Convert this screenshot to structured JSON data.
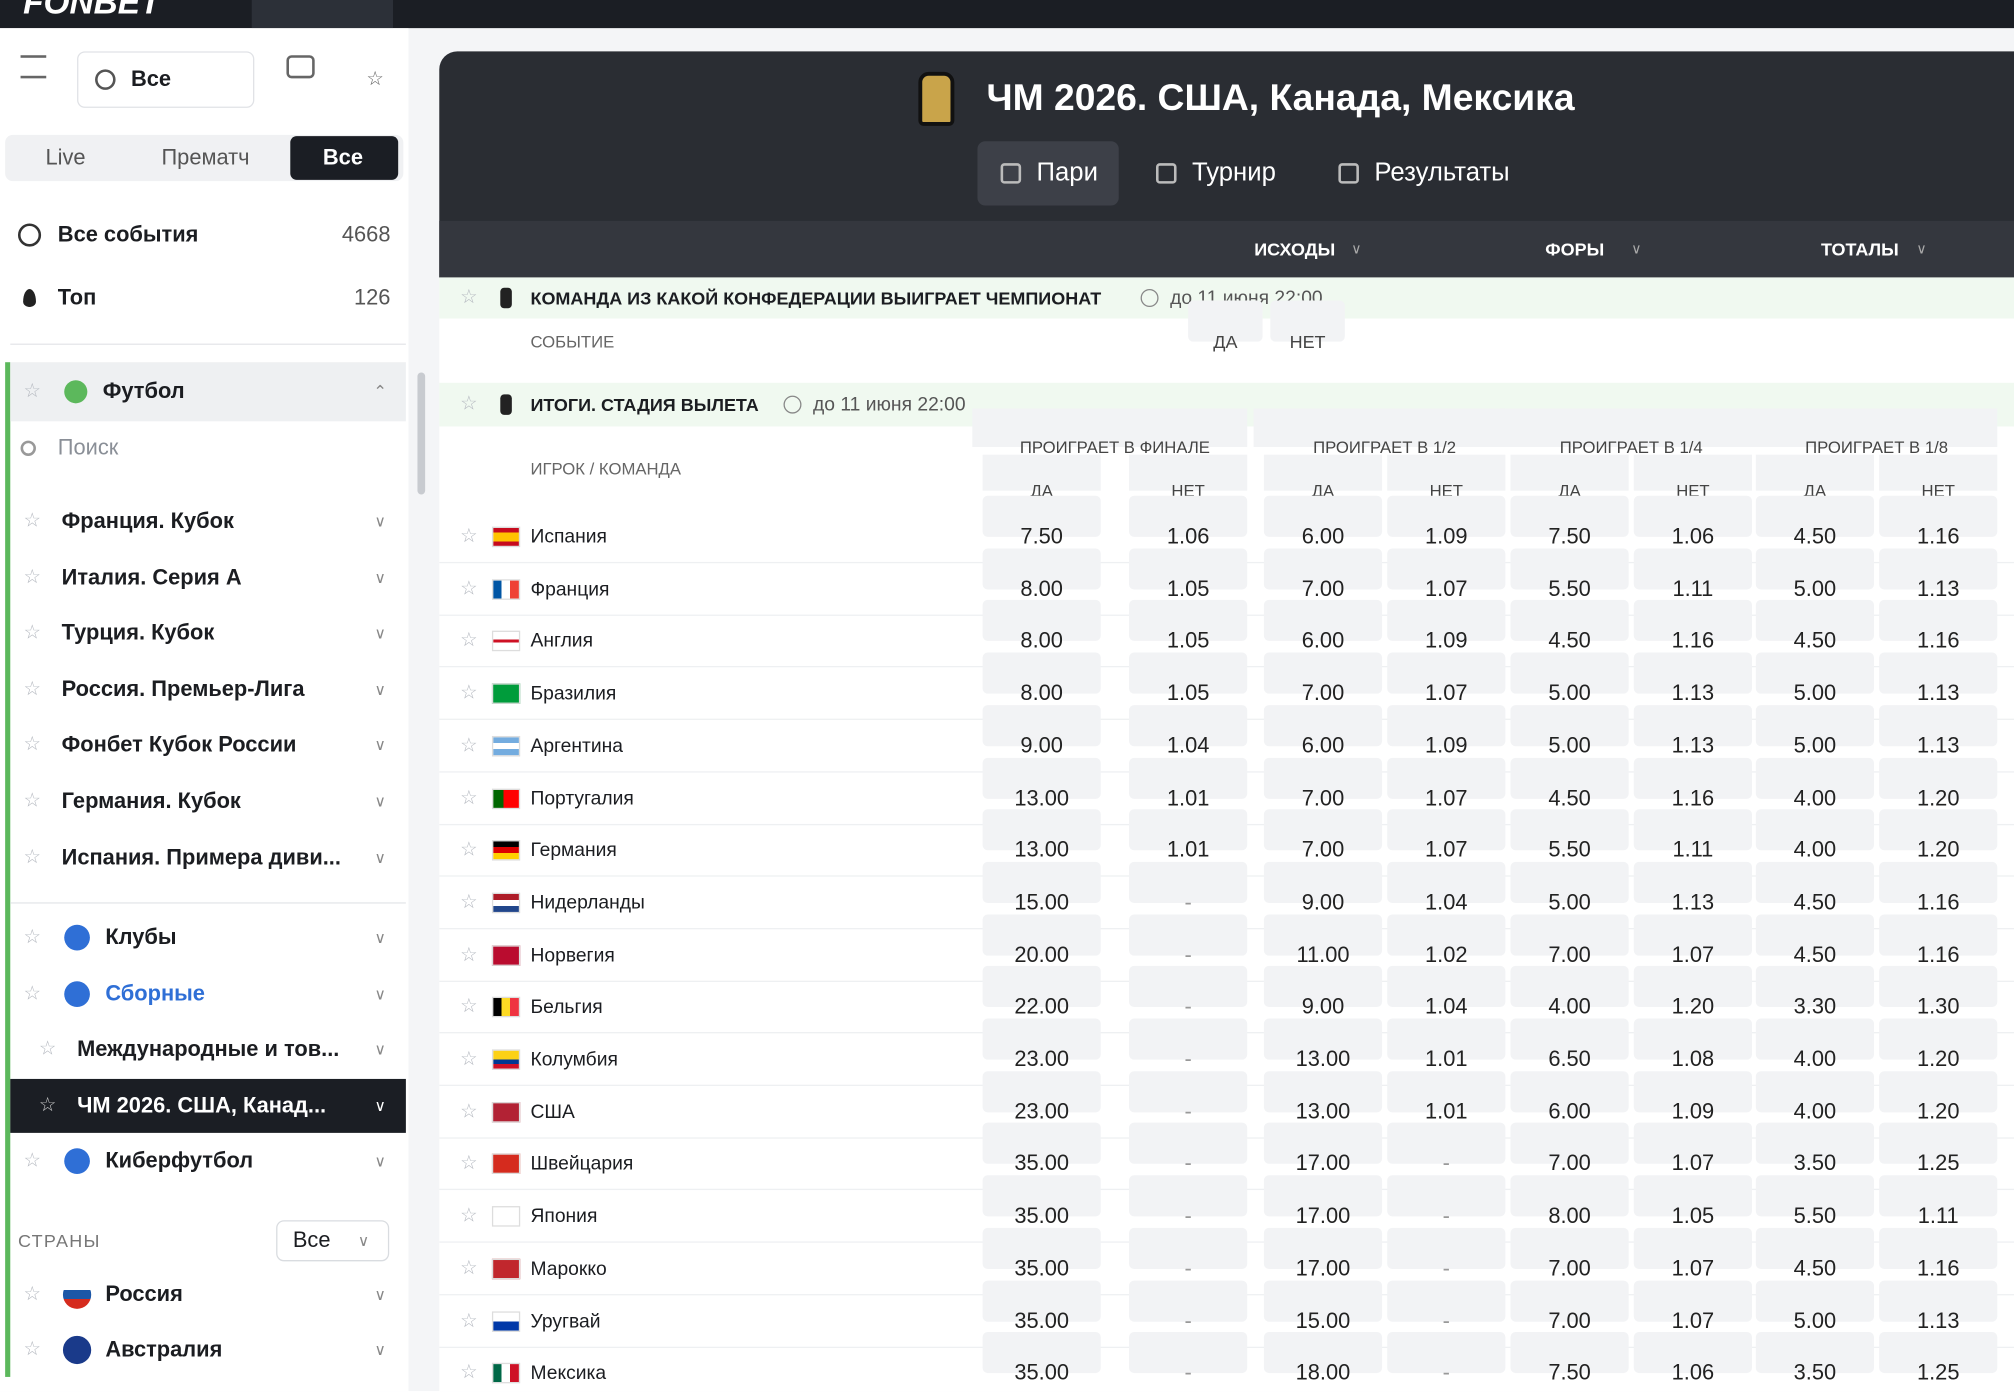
{
  "nav": {
    "logo": "FONBET"
  },
  "sidebar": {
    "filter": "Все",
    "modes": [
      "Live",
      "Прематч",
      "Все"
    ],
    "all_events": {
      "label": "Все события",
      "count": "4668"
    },
    "top": {
      "label": "Топ",
      "count": "126"
    },
    "sport": "Футбол",
    "search": "Поиск",
    "leagues": [
      "Франция. Кубок",
      "Италия. Серия А",
      "Турция. Кубок",
      "Россия. Премьер-Лига",
      "Фонбет Кубок России",
      "Германия. Кубок",
      "Испания. Примера диви..."
    ],
    "groups": [
      "Клубы",
      "Сборные"
    ],
    "subgroups": [
      "Международные и тов...",
      "ЧМ 2026. США, Канад..."
    ],
    "esport": "Киберфутбол",
    "countries": {
      "label": "СТРАНЫ",
      "filter": "Все",
      "items": [
        "Россия",
        "Австралия"
      ]
    }
  },
  "header": {
    "title": "ЧМ 2026. США, Канада, Мексика",
    "tabs": [
      "Пари",
      "Турнир",
      "Результаты"
    ],
    "columns": [
      "ИСХОДЫ",
      "ФОРЫ",
      "ТОТАЛЫ"
    ]
  },
  "market1": {
    "title": "КОМАНДА ИЗ КАКОЙ КОНФЕДЕРАЦИИ ВЫИГРАЕТ ЧЕМПИОНАТ",
    "deadline": "до 11 июня 22:00",
    "col_label": "СОБЫТИЕ",
    "options": [
      "ДА",
      "НЕТ"
    ]
  },
  "market2": {
    "title": "ИТОГИ. СТАДИЯ ВЫЛЕТА",
    "deadline": "до 11 июня 22:00",
    "col_label": "ИГРОК / КОМАНДА",
    "groups": [
      "ПРОИГРАЕТ В ФИНАЛЕ",
      "ПРОИГРАЕТ В 1/2",
      "ПРОИГРАЕТ В 1/4",
      "ПРОИГРАЕТ В 1/8"
    ],
    "subheads": [
      "ДА",
      "НЕТ"
    ],
    "rows": [
      {
        "name": "Испания",
        "odds": [
          "7.50",
          "1.06",
          "6.00",
          "1.09",
          "7.50",
          "1.06",
          "4.50",
          "1.16"
        ]
      },
      {
        "name": "Франция",
        "odds": [
          "8.00",
          "1.05",
          "7.00",
          "1.07",
          "5.50",
          "1.11",
          "5.00",
          "1.13"
        ]
      },
      {
        "name": "Англия",
        "odds": [
          "8.00",
          "1.05",
          "6.00",
          "1.09",
          "4.50",
          "1.16",
          "4.50",
          "1.16"
        ]
      },
      {
        "name": "Бразилия",
        "odds": [
          "8.00",
          "1.05",
          "7.00",
          "1.07",
          "5.00",
          "1.13",
          "5.00",
          "1.13"
        ]
      },
      {
        "name": "Аргентина",
        "odds": [
          "9.00",
          "1.04",
          "6.00",
          "1.09",
          "5.00",
          "1.13",
          "5.00",
          "1.13"
        ]
      },
      {
        "name": "Португалия",
        "odds": [
          "13.00",
          "1.01",
          "7.00",
          "1.07",
          "4.50",
          "1.16",
          "4.00",
          "1.20"
        ]
      },
      {
        "name": "Германия",
        "odds": [
          "13.00",
          "1.01",
          "7.00",
          "1.07",
          "5.50",
          "1.11",
          "4.00",
          "1.20"
        ]
      },
      {
        "name": "Нидерланды",
        "odds": [
          "15.00",
          "-",
          "9.00",
          "1.04",
          "5.00",
          "1.13",
          "4.50",
          "1.16"
        ]
      },
      {
        "name": "Норвегия",
        "odds": [
          "20.00",
          "-",
          "11.00",
          "1.02",
          "7.00",
          "1.07",
          "4.50",
          "1.16"
        ]
      },
      {
        "name": "Бельгия",
        "odds": [
          "22.00",
          "-",
          "9.00",
          "1.04",
          "4.00",
          "1.20",
          "3.30",
          "1.30"
        ]
      },
      {
        "name": "Колумбия",
        "odds": [
          "23.00",
          "-",
          "13.00",
          "1.01",
          "6.50",
          "1.08",
          "4.00",
          "1.20"
        ]
      },
      {
        "name": "США",
        "odds": [
          "23.00",
          "-",
          "13.00",
          "1.01",
          "6.00",
          "1.09",
          "4.00",
          "1.20"
        ]
      },
      {
        "name": "Швейцария",
        "odds": [
          "35.00",
          "-",
          "17.00",
          "-",
          "7.00",
          "1.07",
          "3.50",
          "1.25"
        ]
      },
      {
        "name": "Япония",
        "odds": [
          "35.00",
          "-",
          "17.00",
          "-",
          "8.00",
          "1.05",
          "5.50",
          "1.11"
        ]
      },
      {
        "name": "Марокко",
        "odds": [
          "35.00",
          "-",
          "17.00",
          "-",
          "7.00",
          "1.07",
          "4.50",
          "1.16"
        ]
      },
      {
        "name": "Уругвай",
        "odds": [
          "35.00",
          "-",
          "15.00",
          "-",
          "7.00",
          "1.07",
          "5.00",
          "1.13"
        ]
      },
      {
        "name": "Мексика",
        "odds": [
          "35.00",
          "-",
          "18.00",
          "-",
          "7.50",
          "1.06",
          "3.50",
          "1.25"
        ]
      }
    ]
  }
}
